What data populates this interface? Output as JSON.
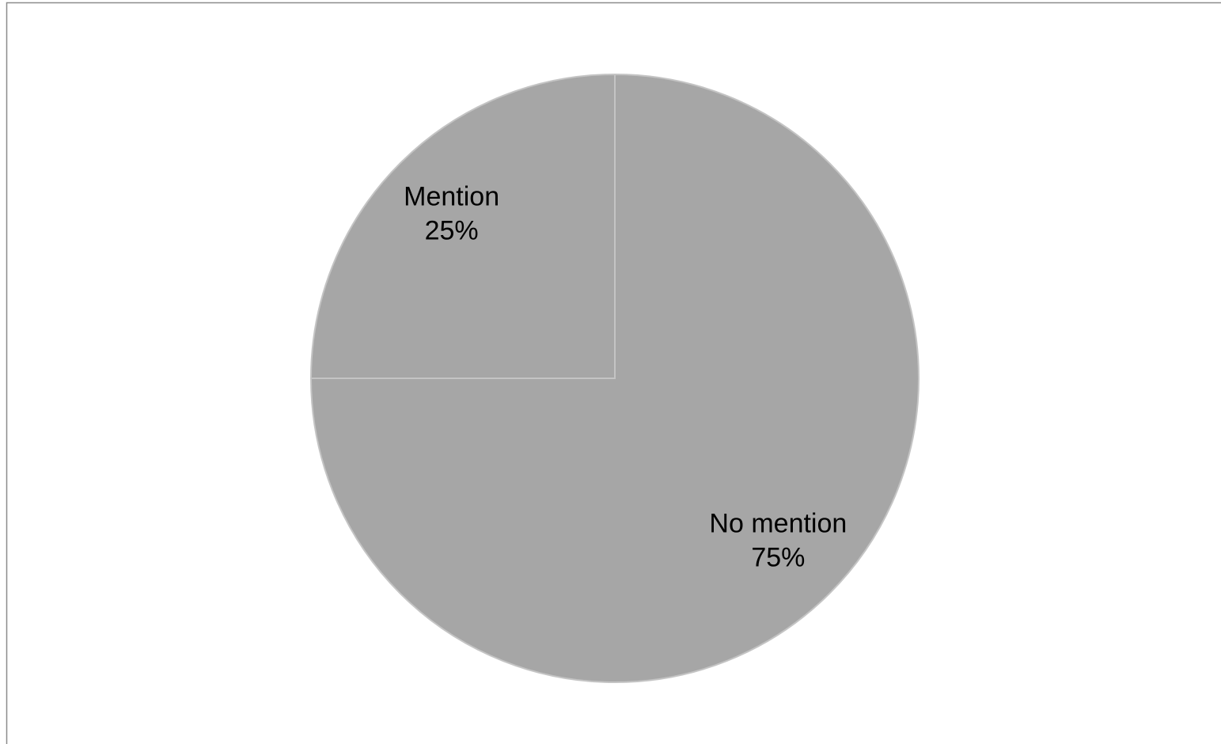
{
  "chart_data": {
    "type": "pie",
    "categories": [
      "No mention",
      "Mention"
    ],
    "values": [
      75,
      25
    ],
    "value_labels": [
      "75%",
      "25%"
    ],
    "colors": [
      "#a6a6a6",
      "#a6a6a6"
    ]
  }
}
